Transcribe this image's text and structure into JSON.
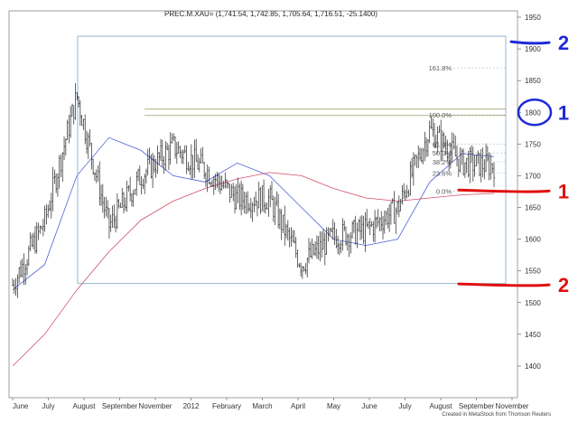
{
  "chart_data": {
    "type": "line",
    "title": "PREC.M.XAU=  (1,741.54, 1,742.85, 1,705.64, 1,716.51, -25.1400)",
    "credit": "Created in MetaStock from Thomson Reuters",
    "ylim": [
      1350,
      1960
    ],
    "yticks": [
      1400,
      1450,
      1500,
      1550,
      1600,
      1650,
      1700,
      1750,
      1800,
      1850,
      1900,
      1950
    ],
    "x_month_labels": [
      "June",
      "July",
      "August",
      "September",
      "November",
      "2012",
      "February",
      "March",
      "April",
      "May",
      "June",
      "July",
      "August",
      "September",
      "November"
    ],
    "grid": false,
    "series": [
      {
        "values_monthly_close": [
          1528,
          1628,
          1826,
          1620,
          1700,
          1746,
          1710,
          1664,
          1664,
          1561,
          1604,
          1614,
          1648,
          1772,
          1720,
          1716
        ]
      }
    ],
    "moving_average_fast": [
      1520,
      1560,
      1700,
      1760,
      1740,
      1700,
      1690,
      1720,
      1700,
      1650,
      1600,
      1590,
      1600,
      1690,
      1735,
      1730
    ],
    "moving_average_slow": [
      1400,
      1450,
      1520,
      1580,
      1630,
      1660,
      1680,
      1695,
      1705,
      1700,
      1680,
      1665,
      1660,
      1665,
      1670,
      1672
    ],
    "support_level": 1530,
    "resistance_level": 1920,
    "level_1805": 1805,
    "level_1795": 1795,
    "fibonacci": [
      {
        "label": "161.8%",
        "value": 1870
      },
      {
        "label": "100.0%",
        "value": 1796
      },
      {
        "label": "61.8%",
        "value": 1750
      },
      {
        "label": "50.0%",
        "value": 1736
      },
      {
        "label": "38.2%",
        "value": 1722
      },
      {
        "label": "23.6%",
        "value": 1704
      },
      {
        "label": "0.0%",
        "value": 1676
      }
    ],
    "annotations": [
      {
        "label": "2",
        "value": 1910,
        "color": "#1f2ad8"
      },
      {
        "label": "1",
        "value": 1800,
        "color": "#1f2ad8"
      },
      {
        "label": "1",
        "value": 1676,
        "color": "#e01010"
      },
      {
        "label": "2",
        "value": 1528,
        "color": "#e01010"
      }
    ]
  }
}
